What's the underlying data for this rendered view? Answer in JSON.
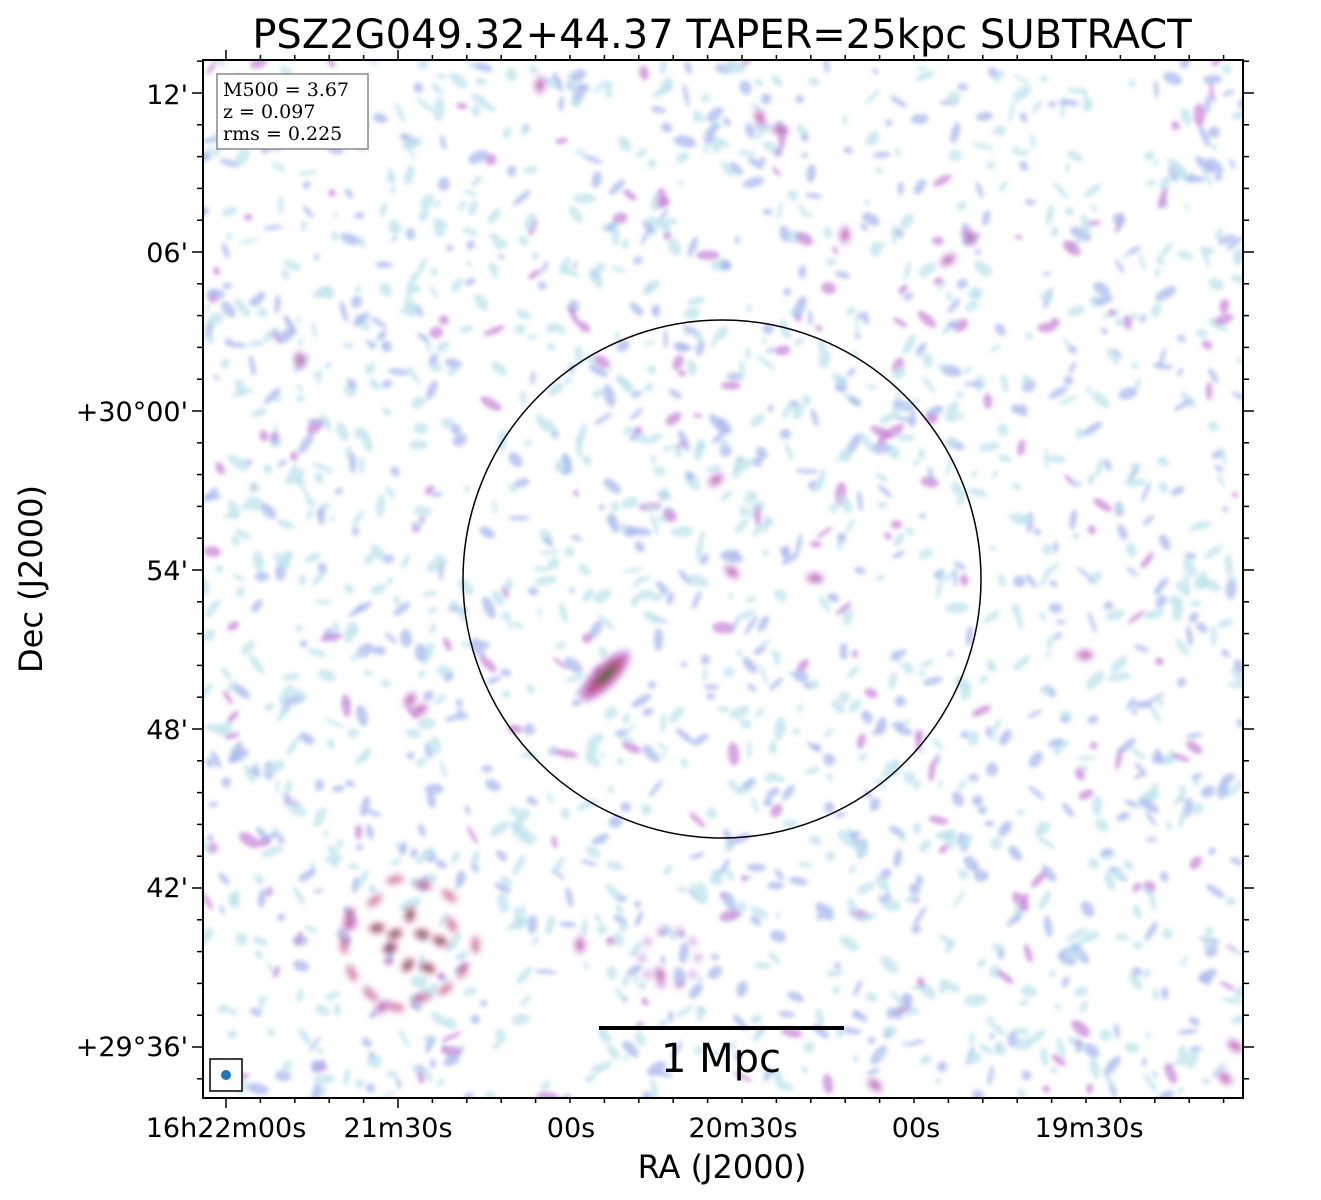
{
  "chart_data": {
    "type": "heatmap",
    "title": "PSZ2G049.32+44.37 TAPER=25kpc SUBTRACT",
    "xlabel": "RA (J2000)",
    "ylabel": "Dec (J2000)",
    "x_ticks": [
      "16h22m00s",
      "21m30s",
      "00s",
      "20m30s",
      "00s",
      "19m30s"
    ],
    "y_ticks": [
      "12'",
      "06'",
      "+30°00'",
      "54'",
      "48'",
      "42'",
      "+29°36'"
    ],
    "info_box": [
      "M500 = 3.67",
      "z = 0.097",
      "rms = 0.225"
    ],
    "scale_bar_label": "1 Mpc",
    "colormap": [
      "#bfe3ec",
      "#aab8ee",
      "#c98ad8",
      "#c1528a",
      "#3e6b2e"
    ],
    "circle_color": "#000000",
    "beam_color": "#1f77b4",
    "grid": false
  }
}
